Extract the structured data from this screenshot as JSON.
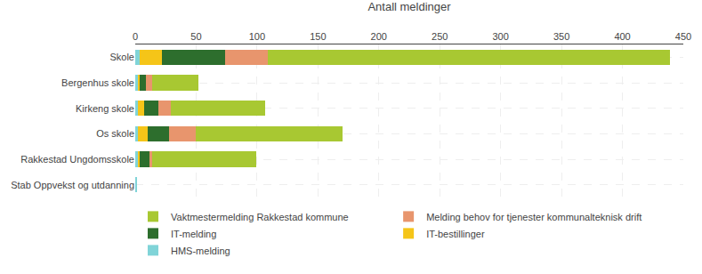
{
  "chart_data": {
    "type": "bar",
    "orientation": "horizontal",
    "stacked": true,
    "categories": [
      "Stab Oppvekst og utdanning",
      "Rakkestad Ungdomsskole",
      "Os skole",
      "Kirkeng skole",
      "Bergenhus skole",
      "Skole"
    ],
    "series": [
      {
        "name": "HMS-melding",
        "color": "#80d4d8",
        "values": [
          1,
          2,
          2,
          2,
          2,
          4
        ]
      },
      {
        "name": "IT-bestillinger",
        "color": "#f5c518",
        "values": [
          0,
          2,
          8,
          5,
          2,
          18
        ]
      },
      {
        "name": "IT-melding",
        "color": "#2d6e2d",
        "values": [
          0,
          8,
          18,
          12,
          5,
          52
        ]
      },
      {
        "name": "Melding behov for tjenester kommunalteknisk drift",
        "color": "#e8956d",
        "values": [
          0,
          2,
          22,
          10,
          5,
          35
        ]
      },
      {
        "name": "Vaktmestermelding Rakkestad kommune",
        "color": "#a8c832",
        "values": [
          0,
          85,
          120,
          78,
          38,
          330
        ]
      }
    ],
    "xlabel": "Antall meldinger",
    "xlim": [
      0,
      450
    ],
    "xticks": [
      0,
      50,
      100,
      150,
      200,
      250,
      300,
      350,
      400,
      450
    ],
    "grid": true,
    "legend": "bottom"
  }
}
